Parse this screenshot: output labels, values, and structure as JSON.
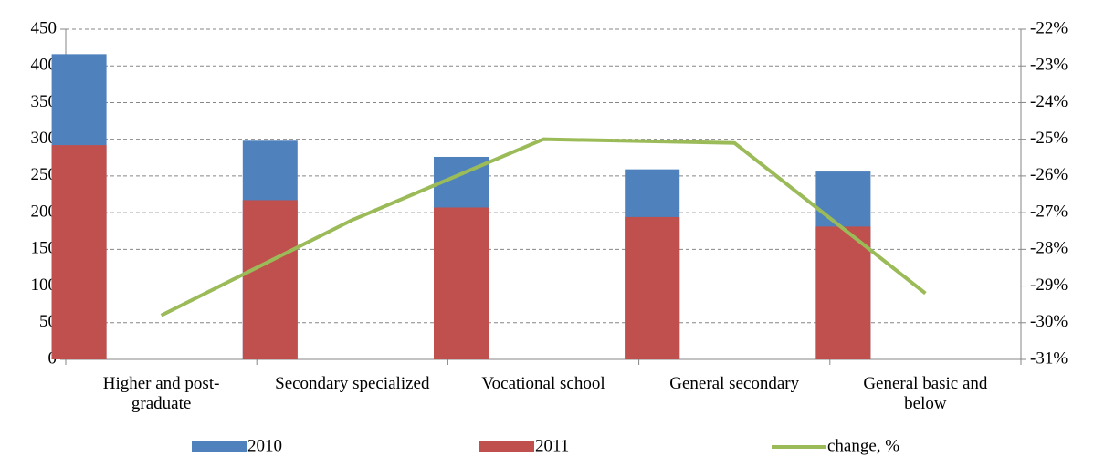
{
  "chart_data": {
    "type": "bar",
    "categories": [
      "Higher and post-graduate",
      "Secondary specialized",
      "Vocational school",
      "General secondary",
      "General basic and below"
    ],
    "series": [
      {
        "name": "2010",
        "color": "#4f81bd",
        "values": [
          416,
          298,
          276,
          259,
          256
        ]
      },
      {
        "name": "2011",
        "color": "#c0504d",
        "values": [
          292,
          217,
          207,
          194,
          181
        ]
      },
      {
        "name": "change, %",
        "color": "#9bbb59",
        "type": "line",
        "axis": "y2",
        "values": [
          -29.8,
          -27.2,
          -25.0,
          -25.1,
          -29.2
        ]
      }
    ],
    "ylim": [
      0,
      450
    ],
    "yticks": [
      0,
      50,
      100,
      150,
      200,
      250,
      300,
      350,
      400,
      450
    ],
    "y2lim": [
      -31,
      -22
    ],
    "y2ticks": [
      {
        "value": -31,
        "label": "-31%"
      },
      {
        "value": -30,
        "label": "-30%"
      },
      {
        "value": -29,
        "label": "-29%"
      },
      {
        "value": -28,
        "label": "-28%"
      },
      {
        "value": -27,
        "label": "-27%"
      },
      {
        "value": -26,
        "label": "-26%"
      },
      {
        "value": -25,
        "label": "-25%"
      },
      {
        "value": -24,
        "label": "-24%"
      },
      {
        "value": -23,
        "label": "-23%"
      },
      {
        "value": -22,
        "label": "-22%"
      }
    ],
    "grid": true,
    "legend": "bottom"
  }
}
